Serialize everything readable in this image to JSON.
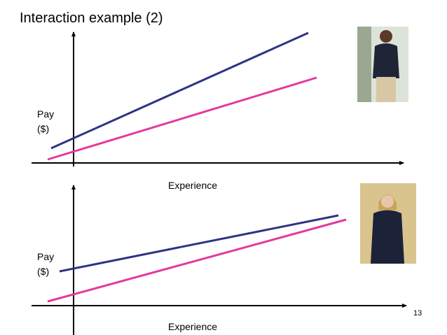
{
  "title": "Interaction example (2)",
  "panels": [
    {
      "y_label": [
        "Pay",
        "($)"
      ],
      "x_label": "Experience"
    },
    {
      "y_label": [
        "Pay",
        "($)"
      ],
      "x_label": "Experience"
    }
  ],
  "page_number": "13"
}
